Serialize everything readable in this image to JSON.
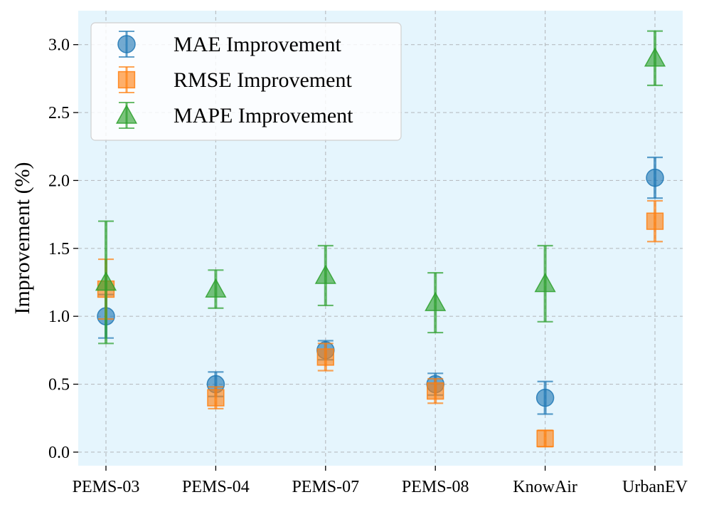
{
  "chart_data": {
    "type": "scatter",
    "title": "",
    "xlabel": "",
    "ylabel": "Improvement (%)",
    "categories": [
      "PEMS-03",
      "PEMS-04",
      "PEMS-07",
      "PEMS-08",
      "KnowAir",
      "UrbanEV"
    ],
    "ylim": [
      -0.1,
      3.25
    ],
    "yticks": [
      0.0,
      0.5,
      1.0,
      1.5,
      2.0,
      2.5,
      3.0
    ],
    "ytick_labels": [
      "0.0",
      "0.5",
      "1.0",
      "1.5",
      "2.0",
      "2.5",
      "3.0"
    ],
    "grid": true,
    "legend_position": "top-left",
    "background_color": "#e5f5fd",
    "series": [
      {
        "name": "MAE Improvement",
        "marker": "circle",
        "color": "#1f77b4",
        "values": [
          1.0,
          0.5,
          0.75,
          0.5,
          0.4,
          2.02
        ],
        "errors": [
          0.16,
          0.09,
          0.07,
          0.08,
          0.12,
          0.15
        ]
      },
      {
        "name": "RMSE Improvement",
        "marker": "square",
        "color": "#ff7f0e",
        "values": [
          1.2,
          0.4,
          0.7,
          0.45,
          0.1,
          1.7
        ],
        "errors": [
          0.22,
          0.08,
          0.1,
          0.09,
          0.06,
          0.15
        ]
      },
      {
        "name": "MAPE Improvement",
        "marker": "triangle",
        "color": "#2ca02c",
        "values": [
          1.25,
          1.2,
          1.3,
          1.1,
          1.24,
          2.9
        ],
        "errors": [
          0.45,
          0.14,
          0.22,
          0.22,
          0.28,
          0.2
        ]
      }
    ]
  }
}
